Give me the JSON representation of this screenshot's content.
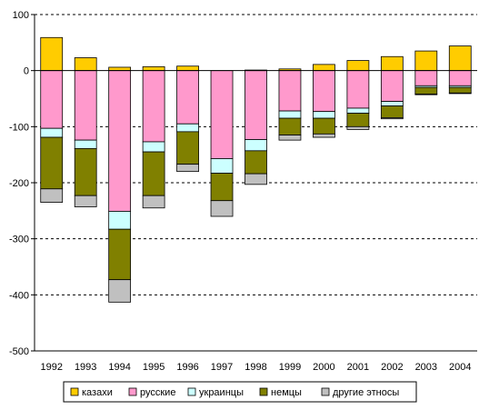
{
  "chart_data": {
    "type": "bar",
    "stacked": true,
    "grid": "horizontal dashed",
    "legend_position": "bottom",
    "ylim": [
      -500,
      100
    ],
    "yticks": [
      100,
      0,
      -100,
      -200,
      -300,
      -400,
      -500
    ],
    "categories": [
      "1992",
      "1993",
      "1994",
      "1995",
      "1996",
      "1997",
      "1998",
      "1999",
      "2000",
      "2001",
      "2002",
      "2003",
      "2004"
    ],
    "series": [
      {
        "name": "казахи",
        "color": "#FFCC00",
        "values": [
          59,
          23,
          6,
          7,
          8,
          0,
          1,
          3,
          11,
          18,
          25,
          35,
          44
        ]
      },
      {
        "name": "русские",
        "color": "#FF99CC",
        "values": [
          -103,
          -124,
          -251,
          -127,
          -95,
          -157,
          -123,
          -72,
          -73,
          -67,
          -55,
          -27,
          -27
        ]
      },
      {
        "name": "украинцы",
        "color": "#CCFFFF",
        "values": [
          -16,
          -15,
          -32,
          -18,
          -14,
          -26,
          -20,
          -13,
          -12,
          -9,
          -8,
          -3,
          -3
        ]
      },
      {
        "name": "немцы",
        "color": "#808000",
        "values": [
          -92,
          -84,
          -90,
          -78,
          -58,
          -49,
          -41,
          -30,
          -28,
          -24,
          -21,
          -12,
          -10
        ]
      },
      {
        "name": "другие этносы",
        "color": "#C0C0C0",
        "values": [
          -24,
          -20,
          -40,
          -22,
          -13,
          -28,
          -19,
          -9,
          -6,
          -5,
          -2,
          -1,
          -1
        ]
      }
    ]
  }
}
